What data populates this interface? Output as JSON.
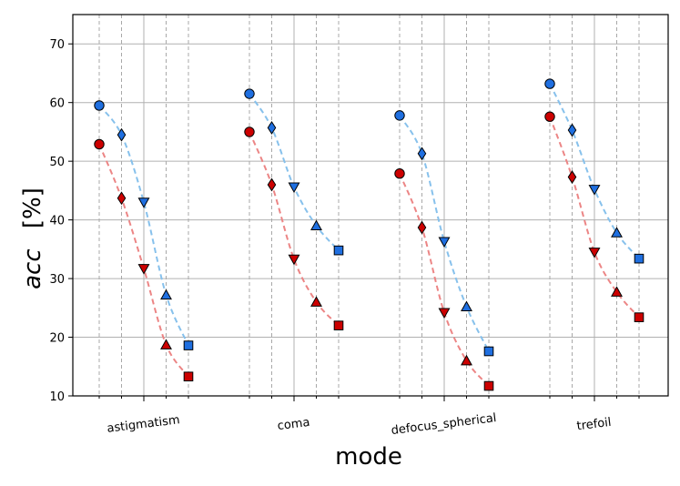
{
  "chart_data": {
    "type": "line",
    "xlabel": "mode",
    "ylabel_main": "acc",
    "ylabel_unit": "[%]",
    "ylim": [
      10,
      75
    ],
    "yticks": [
      10,
      20,
      30,
      40,
      50,
      60,
      70
    ],
    "grid": true,
    "categories": [
      "astigmatism",
      "coma",
      "defocus_spherical",
      "trefoil"
    ],
    "marker_sequence": [
      "circle",
      "diamond",
      "triangle-down",
      "triangle-up",
      "square"
    ],
    "series": [
      {
        "color": "#87c1ec",
        "marker_color": "#1f6fe0",
        "values": [
          [
            59.5,
            54.5,
            43.0,
            27.2,
            18.6
          ],
          [
            61.5,
            55.7,
            45.6,
            39.0,
            34.8
          ],
          [
            57.8,
            51.3,
            36.3,
            25.2,
            17.6
          ],
          [
            63.2,
            55.3,
            45.2,
            37.8,
            33.4
          ]
        ]
      },
      {
        "color": "#ec8585",
        "marker_color": "#cc0000",
        "values": [
          [
            52.9,
            43.7,
            31.7,
            18.7,
            13.3
          ],
          [
            55.0,
            46.0,
            33.3,
            26.0,
            22.0
          ],
          [
            47.9,
            38.7,
            24.2,
            16.0,
            11.7
          ],
          [
            57.6,
            47.3,
            34.5,
            27.7,
            23.4
          ]
        ]
      }
    ]
  }
}
